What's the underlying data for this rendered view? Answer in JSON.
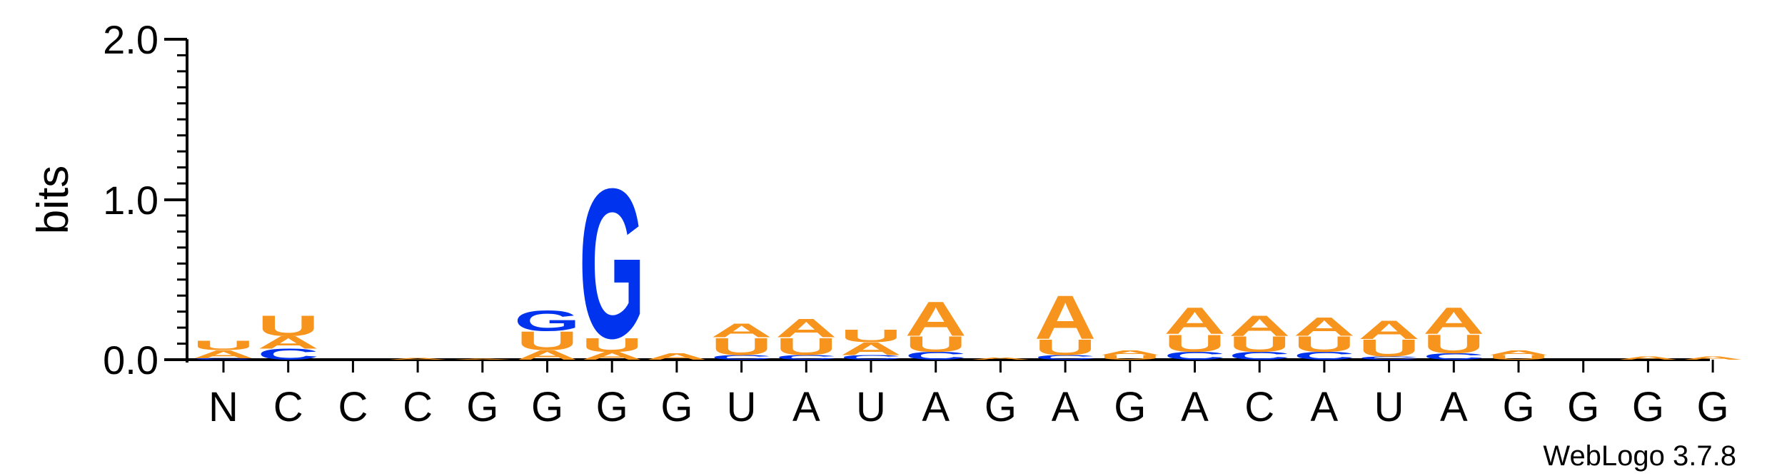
{
  "chart_data": {
    "type": "sequence_logo",
    "ylabel": "bits",
    "ylim": [
      0,
      2.0
    ],
    "yticks": [
      "0.0",
      "1.0",
      "2.0"
    ],
    "credit": "WebLogo 3.7.8",
    "colors": {
      "A": "#f7941d",
      "U": "#f7941d",
      "C": "#0033ee",
      "G": "#0033ee"
    },
    "positions": [
      {
        "label": "N",
        "stack": [
          {
            "letter": "C",
            "bits": 0.01
          },
          {
            "letter": "A",
            "bits": 0.05
          },
          {
            "letter": "U",
            "bits": 0.06
          }
        ]
      },
      {
        "label": "C",
        "stack": [
          {
            "letter": "C",
            "bits": 0.07
          },
          {
            "letter": "A",
            "bits": 0.08
          },
          {
            "letter": "U",
            "bits": 0.13
          }
        ]
      },
      {
        "label": "C",
        "stack": []
      },
      {
        "label": "C",
        "stack": [
          {
            "letter": "A",
            "bits": 0.01
          }
        ]
      },
      {
        "label": "G",
        "stack": [
          {
            "letter": "A",
            "bits": 0.005
          }
        ]
      },
      {
        "label": "G",
        "stack": [
          {
            "letter": "A",
            "bits": 0.06
          },
          {
            "letter": "U",
            "bits": 0.12
          },
          {
            "letter": "G",
            "bits": 0.13
          }
        ]
      },
      {
        "label": "G",
        "stack": [
          {
            "letter": "A",
            "bits": 0.05
          },
          {
            "letter": "U",
            "bits": 0.09
          },
          {
            "letter": "G",
            "bits": 0.96
          }
        ]
      },
      {
        "label": "G",
        "stack": [
          {
            "letter": "A",
            "bits": 0.04
          }
        ]
      },
      {
        "label": "U",
        "stack": [
          {
            "letter": "C",
            "bits": 0.03
          },
          {
            "letter": "U",
            "bits": 0.11
          },
          {
            "letter": "A",
            "bits": 0.09
          }
        ]
      },
      {
        "label": "A",
        "stack": [
          {
            "letter": "C",
            "bits": 0.03
          },
          {
            "letter": "U",
            "bits": 0.11
          },
          {
            "letter": "A",
            "bits": 0.12
          }
        ]
      },
      {
        "label": "U",
        "stack": [
          {
            "letter": "C",
            "bits": 0.03
          },
          {
            "letter": "A",
            "bits": 0.08
          },
          {
            "letter": "U",
            "bits": 0.08
          }
        ]
      },
      {
        "label": "A",
        "stack": [
          {
            "letter": "C",
            "bits": 0.05
          },
          {
            "letter": "U",
            "bits": 0.1
          },
          {
            "letter": "A",
            "bits": 0.22
          }
        ]
      },
      {
        "label": "G",
        "stack": [
          {
            "letter": "A",
            "bits": 0.015
          }
        ]
      },
      {
        "label": "A",
        "stack": [
          {
            "letter": "C",
            "bits": 0.03
          },
          {
            "letter": "U",
            "bits": 0.1
          },
          {
            "letter": "A",
            "bits": 0.28
          }
        ]
      },
      {
        "label": "G",
        "stack": [
          {
            "letter": "U",
            "bits": 0.03
          },
          {
            "letter": "A",
            "bits": 0.03
          }
        ]
      },
      {
        "label": "A",
        "stack": [
          {
            "letter": "C",
            "bits": 0.05
          },
          {
            "letter": "U",
            "bits": 0.11
          },
          {
            "letter": "A",
            "bits": 0.17
          }
        ]
      },
      {
        "label": "C",
        "stack": [
          {
            "letter": "C",
            "bits": 0.05
          },
          {
            "letter": "U",
            "bits": 0.1
          },
          {
            "letter": "A",
            "bits": 0.13
          }
        ]
      },
      {
        "label": "A",
        "stack": [
          {
            "letter": "C",
            "bits": 0.05
          },
          {
            "letter": "U",
            "bits": 0.1
          },
          {
            "letter": "A",
            "bits": 0.12
          }
        ]
      },
      {
        "label": "U",
        "stack": [
          {
            "letter": "C",
            "bits": 0.02
          },
          {
            "letter": "U",
            "bits": 0.11
          },
          {
            "letter": "A",
            "bits": 0.12
          }
        ]
      },
      {
        "label": "A",
        "stack": [
          {
            "letter": "C",
            "bits": 0.04
          },
          {
            "letter": "U",
            "bits": 0.12
          },
          {
            "letter": "A",
            "bits": 0.17
          }
        ]
      },
      {
        "label": "G",
        "stack": [
          {
            "letter": "U",
            "bits": 0.03
          },
          {
            "letter": "A",
            "bits": 0.03
          }
        ]
      },
      {
        "label": "G",
        "stack": []
      },
      {
        "label": "G",
        "stack": [
          {
            "letter": "A",
            "bits": 0.02
          }
        ]
      },
      {
        "label": "G",
        "stack": [
          {
            "letter": "A",
            "bits": 0.02
          }
        ]
      }
    ]
  }
}
